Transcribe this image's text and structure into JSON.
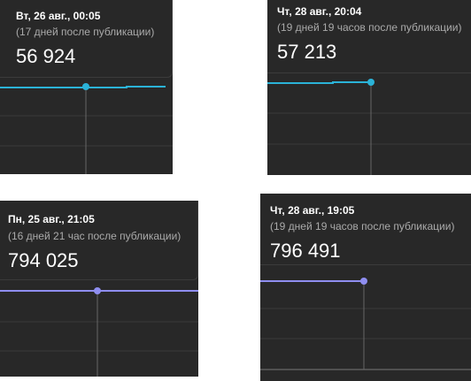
{
  "panels": [
    {
      "date": "Вт, 26 авг., 00:05",
      "note": "(17 дней после публикации)",
      "value": "56 924"
    },
    {
      "date": "Чт, 28 авг., 20:04",
      "note": "(19 дней 19 часов после публикации)",
      "value": "57 213"
    },
    {
      "date": "Пн, 25 авг., 21:05",
      "note": "(16 дней 21 час после публикации)",
      "value": "794 025"
    },
    {
      "date": "Чт, 28 авг., 19:05",
      "note": "(19 дней 19 часов после публикации)",
      "value": "796 491"
    }
  ]
}
